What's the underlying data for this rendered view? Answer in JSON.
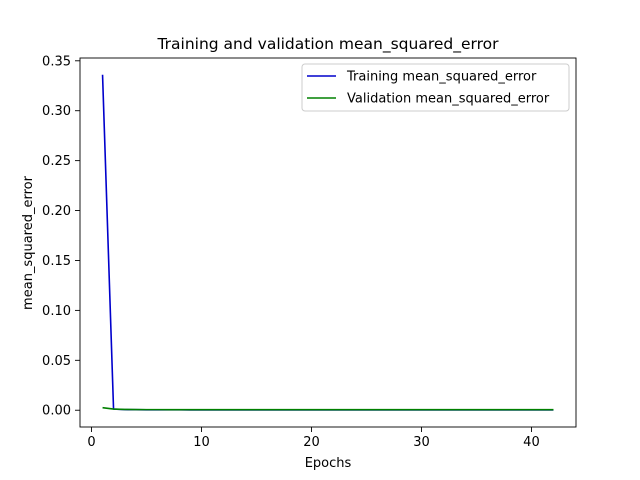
{
  "chart_data": {
    "type": "line",
    "title": "Training and validation mean_squared_error",
    "xlabel": "Epochs",
    "ylabel": "mean_squared_error",
    "xlim": [
      -1.05,
      44.05
    ],
    "ylim": [
      -0.0168,
      0.3528
    ],
    "xticks": [
      0,
      10,
      20,
      30,
      40
    ],
    "yticks": [
      0.0,
      0.05,
      0.1,
      0.15,
      0.2,
      0.25,
      0.3,
      0.35
    ],
    "ytick_labels": [
      "0.00",
      "0.05",
      "0.10",
      "0.15",
      "0.20",
      "0.25",
      "0.30",
      "0.35"
    ],
    "grid": false,
    "legend_position": "top-right",
    "x": [
      1,
      2,
      3,
      4,
      5,
      6,
      7,
      8,
      9,
      10,
      11,
      12,
      13,
      14,
      15,
      16,
      17,
      18,
      19,
      20,
      21,
      22,
      23,
      24,
      25,
      26,
      27,
      28,
      29,
      30,
      31,
      32,
      33,
      34,
      35,
      36,
      37,
      38,
      39,
      40,
      41,
      42
    ],
    "series": [
      {
        "name": "Training mean_squared_error",
        "color": "#0000cc",
        "values": [
          0.336,
          0.0012,
          0.0006,
          0.0005,
          0.0004,
          0.0004,
          0.0004,
          0.0004,
          0.0003,
          0.0003,
          0.0003,
          0.0003,
          0.0003,
          0.0003,
          0.0003,
          0.0003,
          0.0003,
          0.0003,
          0.0003,
          0.0003,
          0.0003,
          0.0003,
          0.0003,
          0.0003,
          0.0003,
          0.0003,
          0.0003,
          0.0003,
          0.0003,
          0.0003,
          0.0003,
          0.0003,
          0.0003,
          0.0003,
          0.0003,
          0.0003,
          0.0003,
          0.0003,
          0.0003,
          0.0003,
          0.0003,
          0.0003
        ]
      },
      {
        "name": "Validation mean_squared_error",
        "color": "#008000",
        "values": [
          0.0025,
          0.0012,
          0.0008,
          0.0007,
          0.0006,
          0.0006,
          0.0005,
          0.0005,
          0.0005,
          0.0005,
          0.0005,
          0.0005,
          0.0005,
          0.0005,
          0.0005,
          0.0005,
          0.0005,
          0.0005,
          0.0005,
          0.0005,
          0.0005,
          0.0005,
          0.0005,
          0.0005,
          0.0005,
          0.0005,
          0.0005,
          0.0005,
          0.0005,
          0.0005,
          0.0005,
          0.0005,
          0.0005,
          0.0005,
          0.0005,
          0.0005,
          0.0005,
          0.0005,
          0.0005,
          0.0005,
          0.0005,
          0.0005
        ]
      }
    ]
  }
}
